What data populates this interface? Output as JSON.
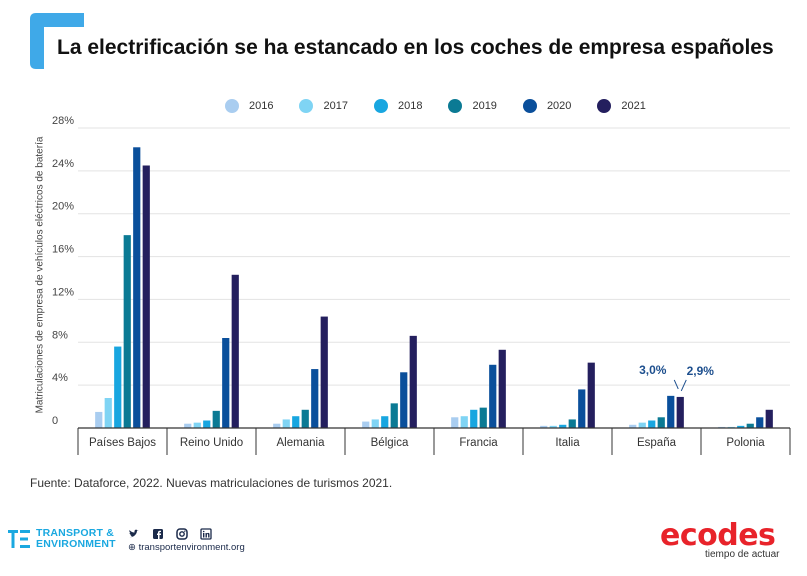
{
  "header": {
    "title": "La electrificación se ha estancado en los coches de empresa españoles"
  },
  "legend": [
    {
      "label": "2016",
      "color": "#a9cdf0"
    },
    {
      "label": "2017",
      "color": "#7fd4f4"
    },
    {
      "label": "2018",
      "color": "#18a6e0"
    },
    {
      "label": "2019",
      "color": "#0b7a94"
    },
    {
      "label": "2020",
      "color": "#0a4f9b"
    },
    {
      "label": "2021",
      "color": "#241f5e"
    }
  ],
  "chart_data": {
    "type": "bar",
    "title": "La electrificación se ha estancado en los coches de empresa españoles",
    "ylabel": "Matriculaciones de empresa de vehículos eléctricos de batería",
    "xlabel": "",
    "ylim": [
      0,
      28
    ],
    "yticks": [
      "0",
      "4%",
      "8%",
      "12%",
      "16%",
      "20%",
      "24%",
      "28%"
    ],
    "grid": true,
    "legend_position": "top-center",
    "categories": [
      "Países Bajos",
      "Reino Unido",
      "Alemania",
      "Bélgica",
      "Francia",
      "Italia",
      "España",
      "Polonia"
    ],
    "series": [
      {
        "name": "2016",
        "values": [
          1.5,
          0.4,
          0.4,
          0.6,
          1.0,
          0.2,
          0.3,
          0.1
        ]
      },
      {
        "name": "2017",
        "values": [
          2.8,
          0.5,
          0.8,
          0.8,
          1.1,
          0.2,
          0.5,
          0.1
        ]
      },
      {
        "name": "2018",
        "values": [
          7.6,
          0.7,
          1.1,
          1.1,
          1.7,
          0.3,
          0.7,
          0.2
        ]
      },
      {
        "name": "2019",
        "values": [
          18.0,
          1.6,
          1.7,
          2.3,
          1.9,
          0.8,
          1.0,
          0.4
        ]
      },
      {
        "name": "2020",
        "values": [
          26.2,
          8.4,
          5.5,
          5.2,
          5.9,
          3.6,
          3.0,
          1.0
        ]
      },
      {
        "name": "2021",
        "values": [
          24.5,
          14.3,
          10.4,
          8.6,
          7.3,
          6.1,
          2.9,
          1.7
        ]
      }
    ],
    "annotations": [
      {
        "category": "España",
        "series": "2020",
        "text": "3,0%"
      },
      {
        "category": "España",
        "series": "2021",
        "text": "2,9%"
      }
    ]
  },
  "footer": {
    "source": "Fuente: Dataforce, 2022. Nuevas matriculaciones de turismos 2021.",
    "te_line1": "TRANSPORT &",
    "te_line2": "ENVIRONMENT",
    "website": "⊕ transportenvironment.org",
    "ecodes": "ecodes",
    "ecodes_tagline": "tiempo de actuar"
  }
}
